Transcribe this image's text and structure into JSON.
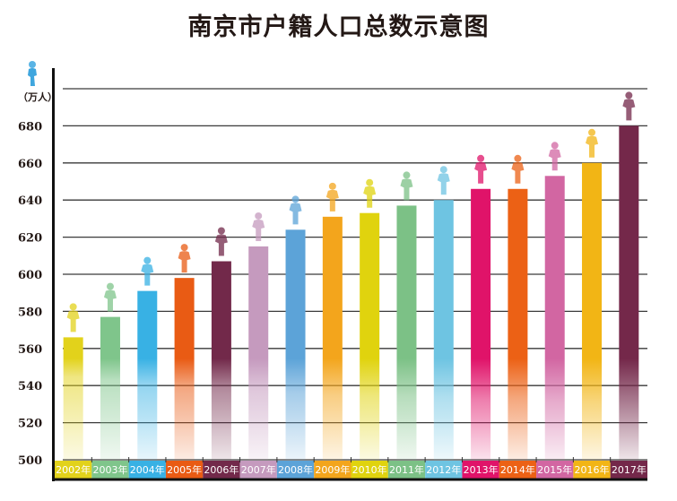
{
  "chart_data": {
    "type": "bar",
    "title": "南京市户籍人口总数示意图",
    "ylabel": "（万人）",
    "xlabel": "",
    "ylim": [
      500,
      700
    ],
    "yticks": [
      500,
      520,
      540,
      560,
      580,
      600,
      620,
      640,
      660,
      680
    ],
    "grid": true,
    "categories": [
      "2002年",
      "2003年",
      "2004年",
      "2005年",
      "2006年",
      "2007年",
      "2008年",
      "2009年",
      "2010年",
      "2011年",
      "2012年",
      "2013年",
      "2014年",
      "2015年",
      "2016年",
      "2017年"
    ],
    "values": [
      566,
      577,
      591,
      598,
      607,
      615,
      624,
      631,
      633,
      637,
      640,
      646,
      646,
      653,
      660,
      680
    ],
    "colors": [
      "#e2d21b",
      "#7fc58b",
      "#38b1e4",
      "#e95b14",
      "#72294a",
      "#c59abe",
      "#5ca3d8",
      "#f3a51c",
      "#e0d30e",
      "#7cc186",
      "#6ec4e2",
      "#e01369",
      "#ec6115",
      "#d266a2",
      "#f2b515",
      "#74284a"
    ],
    "legend": "none",
    "decoration": "person-icon-above-each-bar"
  }
}
